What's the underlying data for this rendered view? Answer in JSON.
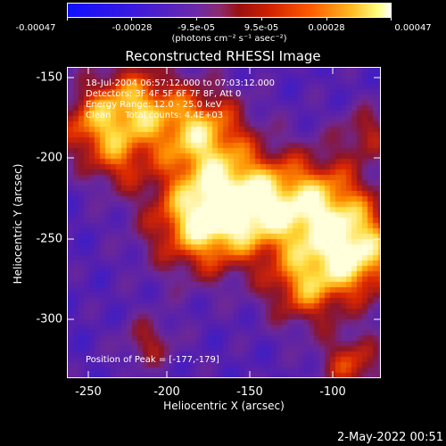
{
  "colorbar": {
    "tick_labels": [
      "-0.00047",
      "-0.00028",
      "-9.5e-05",
      "9.5e-05",
      "0.00028",
      "0.00047"
    ],
    "unit": "(photons cm⁻² s⁻¹ asec⁻²)",
    "colors": [
      "#1010ff",
      "#6d2aa8",
      "#9a1010",
      "#ff5a00",
      "#ffff80",
      "#ffffff"
    ]
  },
  "title": "Reconstructed RHESSI Image",
  "overlay": {
    "line1": "18-Jul-2004 06:57:12.000 to 07:03:12.000",
    "line2": "Detectors: 3F 4F 5F 6F 7F 8F, Att 0",
    "line3": "Energy Range: 12.0 - 25.0 keV",
    "line4": "Clean     Total counts: 4.4E+03",
    "peak": "Position of Peak = [-177,-179]"
  },
  "axes": {
    "xlabel": "Heliocentric X (arcsec)",
    "ylabel": "Heliocentric Y (arcsec)",
    "x_ticks": [
      "-250",
      "-200",
      "-150",
      "-100"
    ],
    "y_ticks": [
      "-150",
      "-200",
      "-250",
      "-300"
    ]
  },
  "timestamp": "2-May-2022 00:51",
  "chart_data": {
    "type": "heatmap",
    "title": "Reconstructed RHESSI Image",
    "xlabel": "Heliocentric X (arcsec)",
    "ylabel": "Heliocentric Y (arcsec)",
    "xlim": [
      -262,
      -72
    ],
    "ylim": [
      -332,
      -143
    ],
    "x_ticks": [
      -250,
      -200,
      -150,
      -100
    ],
    "y_ticks": [
      -150,
      -200,
      -250,
      -300
    ],
    "colorbar_range": [
      -0.00047,
      0.00047
    ],
    "colorbar_ticks": [
      -0.00047,
      -0.00028,
      -9.5e-05,
      9.5e-05,
      0.00028,
      0.00047
    ],
    "peak": [
      -177,
      -179
    ]
  }
}
